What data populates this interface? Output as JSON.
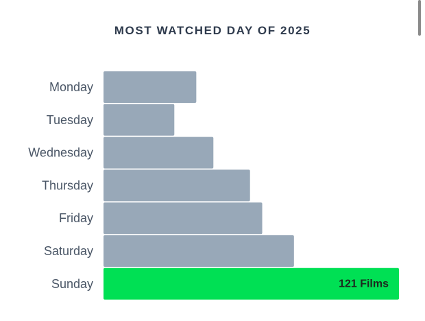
{
  "chart_data": {
    "type": "bar",
    "orientation": "horizontal",
    "title": "MOST WATCHED DAY OF 2025",
    "categories": [
      "Monday",
      "Tuesday",
      "Wednesday",
      "Thursday",
      "Friday",
      "Saturday",
      "Sunday"
    ],
    "values": [
      38,
      29,
      45,
      60,
      65,
      78,
      121
    ],
    "highlight_index": 6,
    "highlight_label": "121 Films",
    "xlim": [
      0,
      121
    ],
    "grid": false,
    "bar_color": "#98a8b8",
    "highlight_color": "#00e054",
    "highlight_label_color": "#1c2a1f",
    "category_label_color": "#4a5666"
  }
}
